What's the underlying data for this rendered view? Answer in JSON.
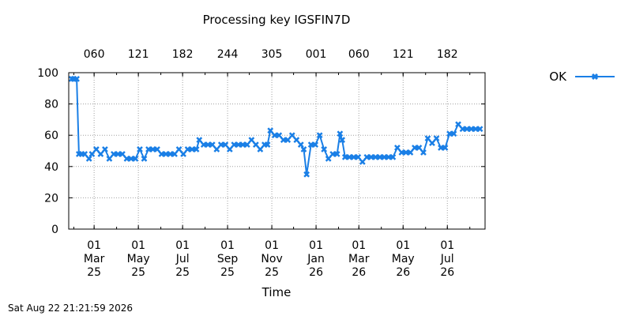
{
  "chart_data": {
    "type": "line",
    "title": "Processing key IGSFIN7D",
    "xlabel": "Time",
    "ylabel": "",
    "ylim": [
      0,
      100
    ],
    "yticks": [
      0,
      20,
      40,
      60,
      80,
      100
    ],
    "x_ticks": [
      {
        "label": "01\nMar\n25",
        "date": "2025-03-01"
      },
      {
        "label": "01\nMay\n25",
        "date": "2025-05-01"
      },
      {
        "label": "01\nJul\n25",
        "date": "2025-07-01"
      },
      {
        "label": "01\nSep\n25",
        "date": "2025-09-01"
      },
      {
        "label": "01\nNov\n25",
        "date": "2025-11-01"
      },
      {
        "label": "01\nJan\n26",
        "date": "2026-01-01"
      },
      {
        "label": "01\nMar\n26",
        "date": "2026-03-01"
      },
      {
        "label": "01\nMay\n26",
        "date": "2026-05-01"
      },
      {
        "label": "01\nJul\n26",
        "date": "2026-07-01"
      }
    ],
    "x2_ticks": [
      {
        "label": "060",
        "date": "2025-03-01"
      },
      {
        "label": "121",
        "date": "2025-05-01"
      },
      {
        "label": "182",
        "date": "2025-07-01"
      },
      {
        "label": "244",
        "date": "2025-09-01"
      },
      {
        "label": "305",
        "date": "2025-11-01"
      },
      {
        "label": "001",
        "date": "2026-01-01"
      },
      {
        "label": "060",
        "date": "2026-03-01"
      },
      {
        "label": "121",
        "date": "2026-05-01"
      },
      {
        "label": "182",
        "date": "2026-07-01"
      }
    ],
    "xlim": [
      "2025-01-25",
      "2026-08-22"
    ],
    "grid": true,
    "legend_position": "top-right",
    "series": [
      {
        "name": "OK",
        "color": "#1a7fe6",
        "marker": "x",
        "points": [
          [
            "2025-01-29",
            96
          ],
          [
            "2025-02-01",
            96
          ],
          [
            "2025-02-05",
            96
          ],
          [
            "2025-02-08",
            48
          ],
          [
            "2025-02-12",
            48
          ],
          [
            "2025-02-16",
            48
          ],
          [
            "2025-02-22",
            45
          ],
          [
            "2025-02-26",
            48
          ],
          [
            "2025-03-04",
            51
          ],
          [
            "2025-03-10",
            48
          ],
          [
            "2025-03-16",
            51
          ],
          [
            "2025-03-22",
            45
          ],
          [
            "2025-03-28",
            48
          ],
          [
            "2025-04-03",
            48
          ],
          [
            "2025-04-09",
            48
          ],
          [
            "2025-04-15",
            45
          ],
          [
            "2025-04-21",
            45
          ],
          [
            "2025-04-27",
            45
          ],
          [
            "2025-05-03",
            51
          ],
          [
            "2025-05-09",
            45
          ],
          [
            "2025-05-15",
            51
          ],
          [
            "2025-05-21",
            51
          ],
          [
            "2025-05-27",
            51
          ],
          [
            "2025-06-02",
            48
          ],
          [
            "2025-06-08",
            48
          ],
          [
            "2025-06-14",
            48
          ],
          [
            "2025-06-20",
            48
          ],
          [
            "2025-06-26",
            51
          ],
          [
            "2025-07-02",
            48
          ],
          [
            "2025-07-08",
            51
          ],
          [
            "2025-07-14",
            51
          ],
          [
            "2025-07-20",
            51
          ],
          [
            "2025-07-24",
            57
          ],
          [
            "2025-07-30",
            54
          ],
          [
            "2025-08-05",
            54
          ],
          [
            "2025-08-11",
            54
          ],
          [
            "2025-08-17",
            51
          ],
          [
            "2025-08-23",
            54
          ],
          [
            "2025-08-29",
            54
          ],
          [
            "2025-09-04",
            51
          ],
          [
            "2025-09-10",
            54
          ],
          [
            "2025-09-16",
            54
          ],
          [
            "2025-09-22",
            54
          ],
          [
            "2025-09-28",
            54
          ],
          [
            "2025-10-04",
            57
          ],
          [
            "2025-10-10",
            54
          ],
          [
            "2025-10-16",
            51
          ],
          [
            "2025-10-22",
            54
          ],
          [
            "2025-10-26",
            54
          ],
          [
            "2025-10-30",
            63
          ],
          [
            "2025-11-05",
            60
          ],
          [
            "2025-11-11",
            60
          ],
          [
            "2025-11-17",
            57
          ],
          [
            "2025-11-23",
            57
          ],
          [
            "2025-11-29",
            60
          ],
          [
            "2025-12-05",
            57
          ],
          [
            "2025-12-11",
            54
          ],
          [
            "2025-12-15",
            51
          ],
          [
            "2025-12-19",
            35
          ],
          [
            "2025-12-25",
            54
          ],
          [
            "2025-12-31",
            54
          ],
          [
            "2026-01-06",
            60
          ],
          [
            "2026-01-12",
            51
          ],
          [
            "2026-01-18",
            45
          ],
          [
            "2026-01-24",
            48
          ],
          [
            "2026-01-30",
            48
          ],
          [
            "2026-02-03",
            61
          ],
          [
            "2026-02-06",
            57
          ],
          [
            "2026-02-10",
            46
          ],
          [
            "2026-02-16",
            46
          ],
          [
            "2026-02-22",
            46
          ],
          [
            "2026-02-28",
            46
          ],
          [
            "2026-03-06",
            43
          ],
          [
            "2026-03-12",
            46
          ],
          [
            "2026-03-18",
            46
          ],
          [
            "2026-03-24",
            46
          ],
          [
            "2026-03-30",
            46
          ],
          [
            "2026-04-05",
            46
          ],
          [
            "2026-04-11",
            46
          ],
          [
            "2026-04-17",
            46
          ],
          [
            "2026-04-23",
            52
          ],
          [
            "2026-04-29",
            49
          ],
          [
            "2026-05-05",
            49
          ],
          [
            "2026-05-11",
            49
          ],
          [
            "2026-05-17",
            52
          ],
          [
            "2026-05-23",
            52
          ],
          [
            "2026-05-29",
            49
          ],
          [
            "2026-06-04",
            58
          ],
          [
            "2026-06-10",
            55
          ],
          [
            "2026-06-16",
            58
          ],
          [
            "2026-06-22",
            52
          ],
          [
            "2026-06-28",
            52
          ],
          [
            "2026-07-04",
            61
          ],
          [
            "2026-07-10",
            61
          ],
          [
            "2026-07-16",
            67
          ],
          [
            "2026-07-22",
            64
          ],
          [
            "2026-07-28",
            64
          ],
          [
            "2026-08-03",
            64
          ],
          [
            "2026-08-09",
            64
          ],
          [
            "2026-08-15",
            64
          ]
        ]
      }
    ]
  },
  "timestamp": "Sat Aug 22 21:21:59 2026"
}
